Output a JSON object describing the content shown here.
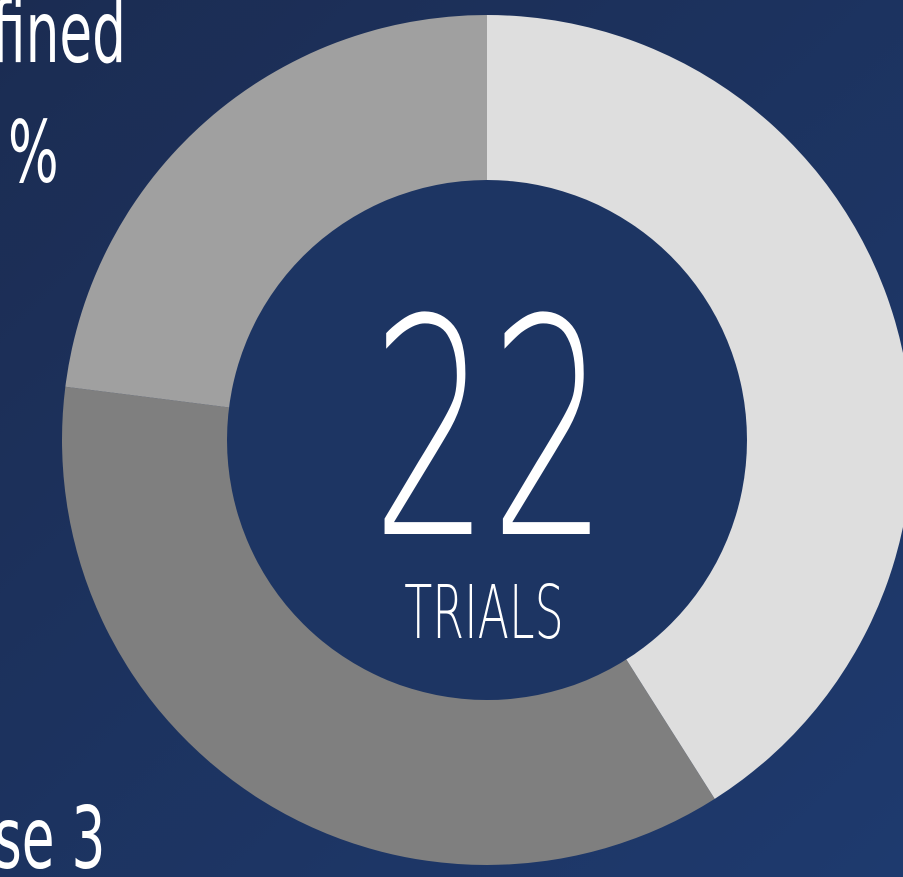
{
  "chart_data": {
    "type": "pie",
    "values": [
      41,
      36,
      23
    ],
    "colors": [
      "#dedede",
      "#7f7f7f",
      "#a0a0a0"
    ],
    "center_value": "22",
    "center_label": "TRIALS",
    "annotations": [
      "fined",
      "%",
      "se 3"
    ]
  }
}
